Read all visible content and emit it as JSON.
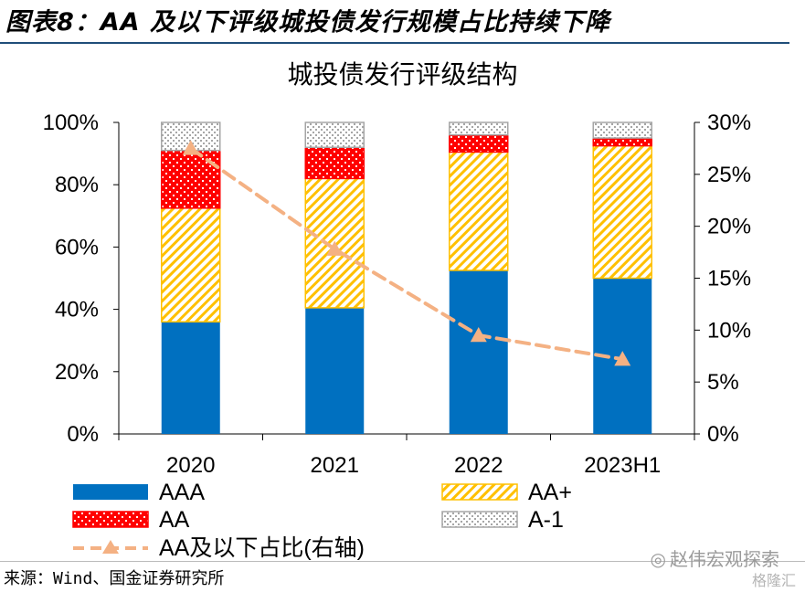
{
  "figure_title": "图表8：AA 及以下评级城投债发行规模占比持续下降",
  "source": "来源：Wind、国金证券研究所",
  "watermark": {
    "text": "赵伟宏观探索",
    "sub": "格隆汇"
  },
  "colors": {
    "AAA": "#0070c0",
    "AA+": "#ffc000",
    "AA": "#ff0000",
    "A-1": "#a6a6a6",
    "line": "#f4b183",
    "rule": "#1f4e79"
  },
  "chart_data": {
    "type": "bar",
    "stacked": true,
    "title": "城投债发行评级结构",
    "categories": [
      "2020",
      "2021",
      "2022",
      "2023H1"
    ],
    "series": [
      {
        "name": "AAA",
        "values": [
          36,
          40.5,
          52.5,
          50
        ]
      },
      {
        "name": "AA+",
        "values": [
          36.5,
          41.5,
          38,
          42.5
        ]
      },
      {
        "name": "AA",
        "values": [
          18.5,
          10,
          5.5,
          2.5
        ]
      },
      {
        "name": "A-1",
        "values": [
          9,
          8,
          4,
          5
        ]
      }
    ],
    "line_series": {
      "name": "AA及以下占比(右轴)",
      "axis": "right",
      "values": [
        27.5,
        17.8,
        9.5,
        7.2
      ]
    },
    "left_axis": {
      "min": 0,
      "max": 100,
      "ticks": [
        "0%",
        "20%",
        "40%",
        "60%",
        "80%",
        "100%"
      ]
    },
    "right_axis": {
      "min": 0,
      "max": 30,
      "ticks": [
        "0%",
        "5%",
        "10%",
        "15%",
        "20%",
        "25%",
        "30%"
      ]
    },
    "grid": false,
    "legend_position": "bottom"
  }
}
